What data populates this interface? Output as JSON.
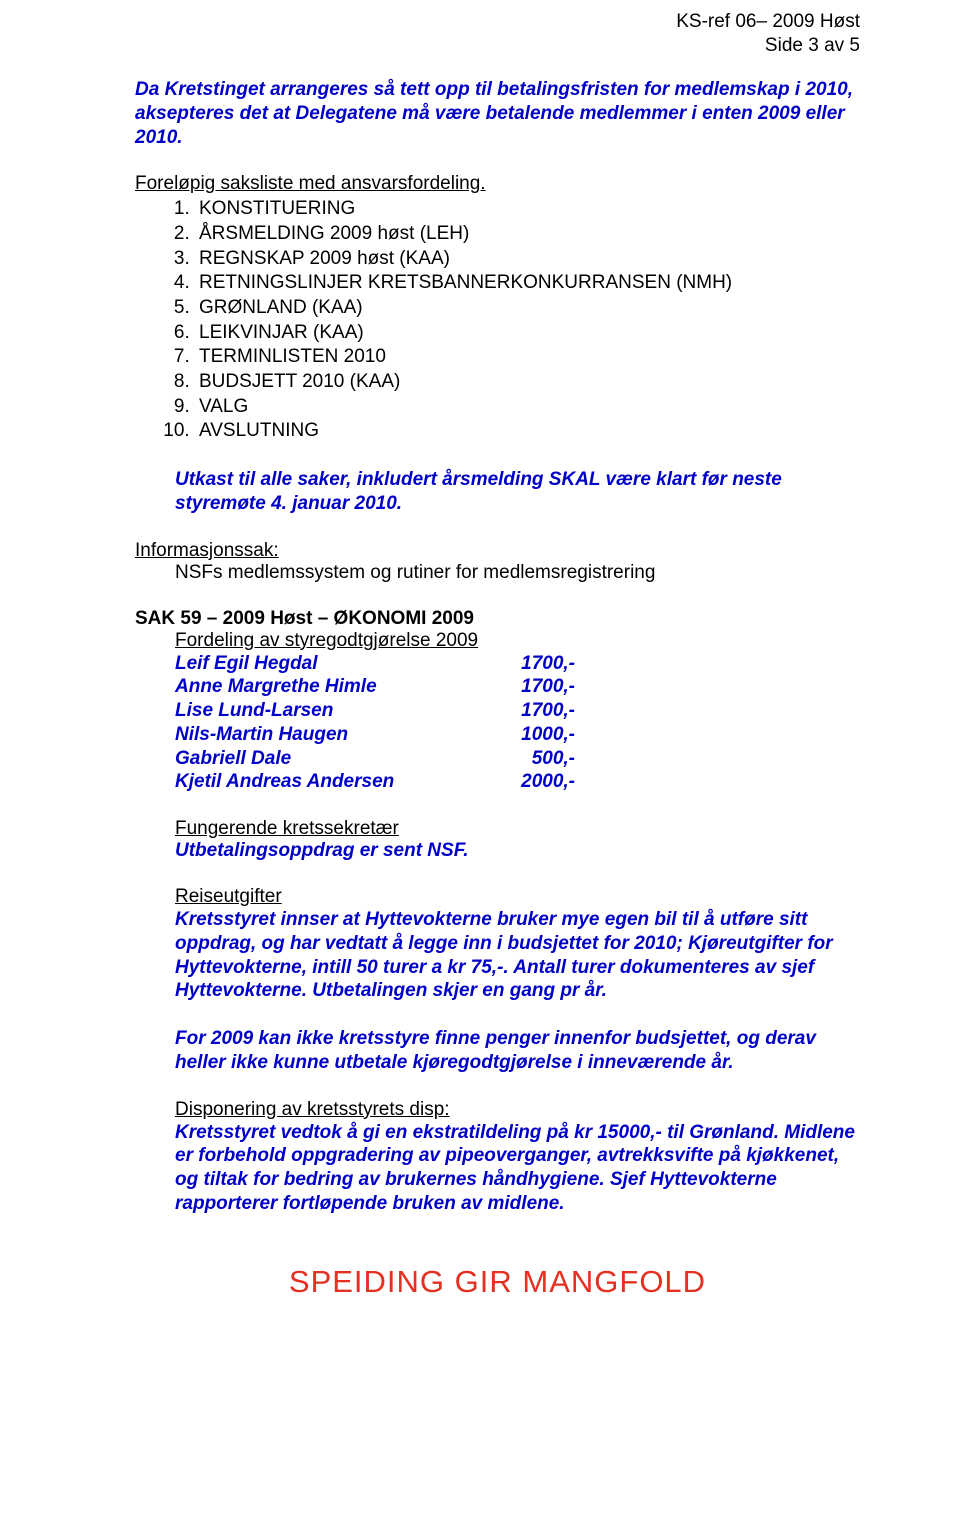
{
  "header": {
    "ref": "KS-ref 06– 2009 Høst",
    "page": "Side 3 av 5"
  },
  "intro": "Da Kretstinget arrangeres så tett opp til betalingsfristen for medlemskap i 2010, aksepteres det at Delegatene må være betalende medlemmer i enten 2009 eller 2010.",
  "saksliste": {
    "title": "Foreløpig saksliste med ansvarsfordeling.",
    "items": [
      "KONSTITUERING",
      "ÅRSMELDING 2009 høst (LEH)",
      "REGNSKAP 2009 høst (KAA)",
      "RETNINGSLINJER KRETSBANNERKONKURRANSEN (NMH)",
      "GRØNLAND (KAA)",
      "LEIKVINJAR (KAA)",
      "TERMINLISTEN 2010",
      "BUDSJETT 2010 (KAA)",
      "VALG",
      "AVSLUTNING"
    ]
  },
  "utkast": "Utkast til alle saker, inkludert årsmelding SKAL være klart før neste styremøte 4. januar 2010.",
  "info": {
    "title": "Informasjonssak:",
    "line": "NSFs medlemssystem og rutiner for medlemsregistrering"
  },
  "sak59": {
    "title": "SAK 59 – 2009 Høst – ØKONOMI 2009",
    "fordeling_title": "Fordeling av styregodtgjørelse 2009",
    "people": [
      {
        "name": "Leif Egil Hegdal",
        "amount": "1700,-"
      },
      {
        "name": "Anne Margrethe Himle",
        "amount": "1700,-"
      },
      {
        "name": "Lise Lund-Larsen",
        "amount": "1700,-"
      },
      {
        "name": "Nils-Martin Haugen",
        "amount": "1000,-"
      },
      {
        "name": "Gabriell Dale",
        "amount": "500,-"
      },
      {
        "name": "Kjetil Andreas Andersen",
        "amount": "2000,-"
      }
    ]
  },
  "fungerende": {
    "title": "Fungerende kretssekretær",
    "line": "Utbetalingsoppdrag er sent NSF."
  },
  "reiseutgifter": {
    "title": "Reiseutgifter",
    "para1": "Kretsstyret innser at Hyttevokterne bruker mye egen bil til å utføre sitt oppdrag, og har vedtatt å legge inn i budsjettet for 2010; Kjøreutgifter for Hyttevokterne, intill 50 turer a kr 75,-. Antall turer dokumenteres av sjef Hyttevokterne. Utbetalingen skjer en gang pr år.",
    "para2": "For 2009 kan ikke kretsstyre finne penger innenfor budsjettet, og derav heller ikke kunne utbetale kjøregodtgjørelse i inneværende år."
  },
  "disp": {
    "title": "Disponering av kretsstyrets disp:",
    "para": "Kretsstyret vedtok å gi en ekstratildeling på kr 15000,- til Grønland. Midlene er forbehold oppgradering av pipeoverganger, avtrekksvifte på kjøkkenet, og tiltak for bedring av brukernes håndhygiene. Sjef Hyttevokterne rapporterer fortløpende bruken av midlene."
  },
  "footer": "SPEIDING GIR MANGFOLD"
}
